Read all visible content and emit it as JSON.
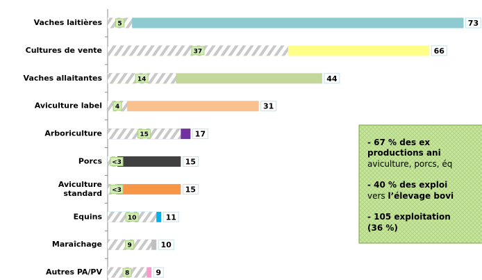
{
  "chart_data": {
    "type": "bar",
    "orientation": "horizontal",
    "categories": [
      "Vaches laitières",
      "Cultures de vente",
      "Vaches allaitantes",
      "Aviculture label",
      "Arboriculture",
      "Porcs",
      "Aviculture\nstandard",
      "Equins",
      "Maraîchage",
      "Autres PA/PV"
    ],
    "series": [
      {
        "values": [
          73,
          66,
          44,
          31,
          17,
          15,
          15,
          11,
          10,
          9
        ],
        "colors": [
          "#8ecbd0",
          "#ffff88",
          "#c4d79b",
          "#fac090",
          "#7030a0",
          "#404040",
          "#f79646",
          "#00b0f0",
          "#bfbfbf",
          "#ff99cc"
        ]
      },
      {
        "values": [
          5,
          37,
          14,
          4,
          15,
          2,
          2,
          10,
          9,
          8
        ],
        "value_labels": [
          "5",
          "37",
          "14",
          "4",
          "15",
          "<3",
          "<3",
          "10",
          "9",
          "8"
        ],
        "pattern": "hatch"
      }
    ],
    "annotation": [
      [
        {
          "text": "- 67 % des ex",
          "bold": true
        }
      ],
      [
        {
          "text": "productions ani",
          "bold": true
        }
      ],
      [
        {
          "text": "aviculture, porcs, éq",
          "bold": false
        }
      ],
      [
        {
          "text": "- 40 % des exploi",
          "bold": true
        }
      ],
      [
        {
          "text": "vers ",
          "bold": false
        },
        {
          "text": "l’élevage bovi",
          "bold": true
        }
      ],
      [
        {
          "text": "- 105 exploitation",
          "bold": true
        }
      ],
      [
        {
          "text": "(36 %)",
          "bold": true
        }
      ]
    ]
  }
}
